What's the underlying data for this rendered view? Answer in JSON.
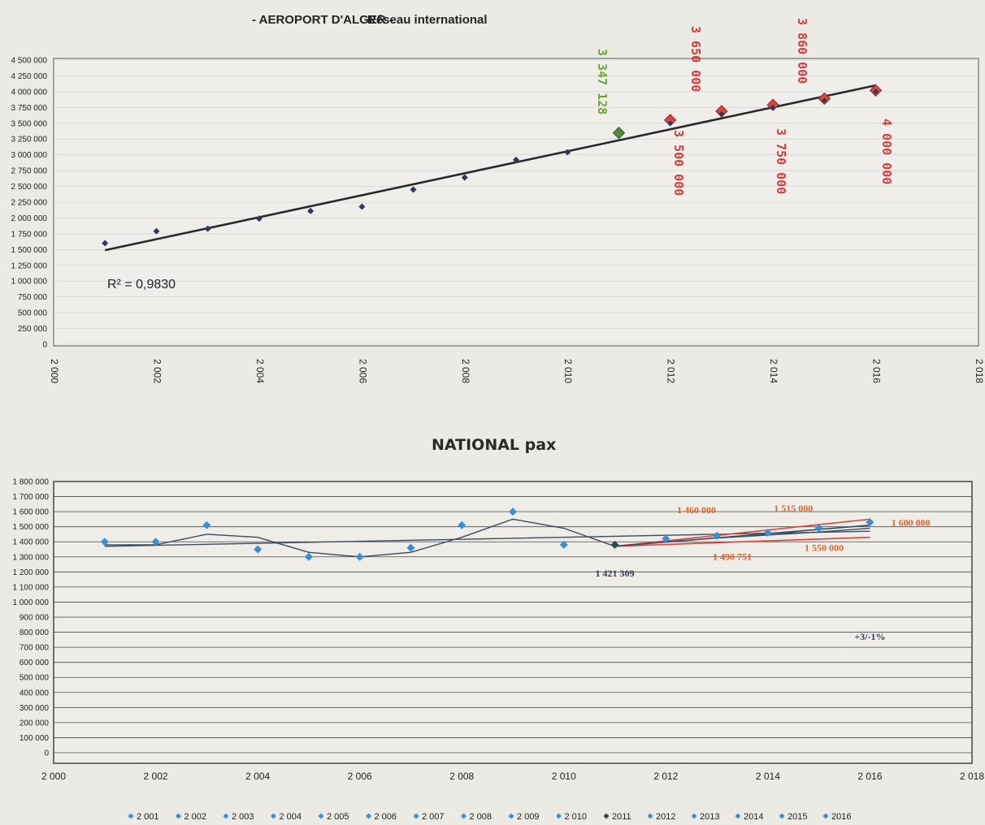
{
  "chart_data": [
    {
      "type": "scatter",
      "title_prefix": "- AEROPORT D'ALGER -",
      "title": "Réseau international",
      "x": [
        2001,
        2002,
        2003,
        2004,
        2005,
        2006,
        2007,
        2008,
        2009,
        2010,
        2011,
        2012,
        2013,
        2014,
        2015,
        2016
      ],
      "y": [
        1600000,
        1790000,
        1830000,
        1990000,
        2110000,
        2180000,
        2450000,
        2640000,
        2920000,
        3040000,
        3347128,
        3500000,
        3650000,
        3750000,
        3860000,
        4000000
      ],
      "forecast_y": {
        "2012": 3550000,
        "2013": 3690000,
        "2014": 3790000,
        "2015": 3890000,
        "2016": 4020000
      },
      "trendline": {
        "x": [
          2001,
          2016
        ],
        "y": [
          1490000,
          4100000
        ]
      },
      "r2_label": "R² = 0,9830",
      "xlim": [
        2000,
        2018
      ],
      "ylim": [
        0,
        4500000
      ],
      "x_ticks": [
        "2 000",
        "2 002",
        "2 004",
        "2 006",
        "2 008",
        "2 010",
        "2 012",
        "2 014",
        "2 016",
        "2 018"
      ],
      "y_ticks": [
        "0",
        "250 000",
        "500 000",
        "750 000",
        "1 000 000",
        "1 250 000",
        "1 500 000",
        "1 750 000",
        "2 000 000",
        "2 250 000",
        "2 500 000",
        "2 750 000",
        "3 000 000",
        "3 250 000",
        "3 500 000",
        "3 750 000",
        "4 000 000",
        "4 250 000",
        "4 500 000"
      ],
      "annotations": [
        {
          "text": "3 347 128",
          "x": 2011,
          "color": "green"
        },
        {
          "text": "3 500 000",
          "x": 2012,
          "color": "red"
        },
        {
          "text": "3 650 000",
          "x": 2013,
          "color": "red"
        },
        {
          "text": "3 750 000",
          "x": 2014,
          "color": "red"
        },
        {
          "text": "3 860 000",
          "x": 2015,
          "color": "red"
        },
        {
          "text": "4 000 000",
          "x": 2016,
          "color": "red"
        }
      ],
      "colors": {
        "points": "#2f3a5a",
        "history_marker": "#4e8f3a",
        "forecast_marker": "#d9463f",
        "trend": "#2a2a2a"
      }
    },
    {
      "type": "line",
      "title": "NATIONAL pax",
      "x": [
        2001,
        2002,
        2003,
        2004,
        2005,
        2006,
        2007,
        2008,
        2009,
        2010,
        2011,
        2012,
        2013,
        2014,
        2015,
        2016
      ],
      "y": [
        1400000,
        1400000,
        1510000,
        1350000,
        1300000,
        1300000,
        1360000,
        1510000,
        1600000,
        1380000,
        1380000,
        1421309,
        1440000,
        1460000,
        1490751,
        1530000
      ],
      "smooth_line": [
        1380000,
        1380000,
        1450000,
        1430000,
        1330000,
        1300000,
        1330000,
        1430000,
        1550000,
        1490000,
        1370000,
        1400000,
        1425000,
        1445000,
        1465000,
        1490000
      ],
      "trend_line": {
        "x": [
          2001,
          2016
        ],
        "y": [
          1370000,
          1470000
        ]
      },
      "fan_lines": [
        {
          "x": [
            2011,
            2016
          ],
          "y": [
            1370000,
            1550000
          ],
          "color": "#d9463f"
        },
        {
          "x": [
            2011,
            2016
          ],
          "y": [
            1370000,
            1430000
          ],
          "color": "#d9463f"
        },
        {
          "x": [
            2011,
            2016
          ],
          "y": [
            1370000,
            1510000
          ],
          "color": "#3b4a66"
        }
      ],
      "xlim": [
        2000,
        2018
      ],
      "ylim": [
        0,
        1800000
      ],
      "x_ticks": [
        "2 000",
        "2 002",
        "2 004",
        "2 006",
        "2 008",
        "2 010",
        "2 012",
        "2 014",
        "2 016",
        "2 018"
      ],
      "y_ticks": [
        "0",
        "100 000",
        "200 000",
        "300 000",
        "400 000",
        "500 000",
        "600 000",
        "700 000",
        "800 000",
        "900 000",
        "1 000 000",
        "1 100 000",
        "1 200 000",
        "1 300 000",
        "1 400 000",
        "1 500 000",
        "1 600 000",
        "1 700 000",
        "1 800 000"
      ],
      "annotations": [
        {
          "text": "1 460 000",
          "x": 2012.6,
          "y": 1590000,
          "color": "#e0652a"
        },
        {
          "text": "1 515 000",
          "x": 2014.5,
          "y": 1600000,
          "color": "#e0652a"
        },
        {
          "text": "1 600 000",
          "x": 2016.8,
          "y": 1505000,
          "color": "#e0652a"
        },
        {
          "text": "1 490 751",
          "x": 2013.3,
          "y": 1280000,
          "color": "#e0652a"
        },
        {
          "text": "1 550 000",
          "x": 2015.1,
          "y": 1340000,
          "color": "#e0652a"
        },
        {
          "text": "1 421 309",
          "x": 2011.0,
          "y": 1170000,
          "color": "#2f3f55"
        },
        {
          "text": "+3/-1%",
          "x": 2016.0,
          "y": 750000,
          "color": "#2f3f55"
        }
      ],
      "legend": [
        "2 001",
        "2 002",
        "2 003",
        "2 004",
        "2 005",
        "2 006",
        "2 007",
        "2 008",
        "2 009",
        "2 010",
        "2011",
        "2012",
        "2013",
        "2014",
        "2015",
        "2016"
      ],
      "colors": {
        "markers": "#3a8fd6",
        "marker_2011": "#2e4a4a",
        "lines": "#3c4a5e"
      }
    }
  ]
}
